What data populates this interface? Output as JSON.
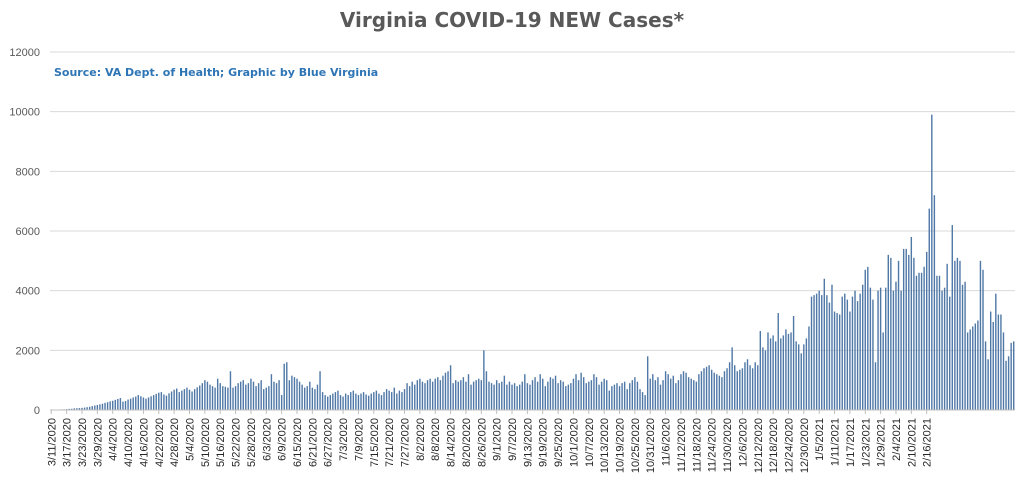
{
  "chart_data": {
    "type": "bar",
    "title": "Virginia COVID-19 NEW Cases*",
    "subtitle": "Source: VA Dept. of Health; Graphic by Blue Virginia",
    "xlabel": "",
    "ylabel": "",
    "ylim": [
      0,
      12000
    ],
    "yticks": [
      0,
      2000,
      4000,
      6000,
      8000,
      10000,
      12000
    ],
    "grid": true,
    "legend": "none",
    "bar_color": "#4f78a7",
    "start_date": "2020-03-11",
    "tick_labels": [
      "3/11/2020",
      "3/17/2020",
      "3/23/2020",
      "3/29/2020",
      "4/4/2020",
      "4/10/2020",
      "4/16/2020",
      "4/22/2020",
      "4/28/2020",
      "5/4/2020",
      "5/10/2020",
      "5/16/2020",
      "5/22/2020",
      "5/28/2020",
      "6/3/2020",
      "6/9/2020",
      "6/15/2020",
      "6/21/2020",
      "6/27/2020",
      "7/3/2020",
      "7/9/2020",
      "7/15/2020",
      "7/21/2020",
      "7/27/2020",
      "8/2/2020",
      "8/8/2020",
      "8/14/2020",
      "8/20/2020",
      "8/26/2020",
      "9/1/2020",
      "9/7/2020",
      "9/13/2020",
      "9/19/2020",
      "9/25/2020",
      "10/1/2020",
      "10/7/2020",
      "10/13/2020",
      "10/19/2020",
      "10/25/2020",
      "10/31/2020",
      "11/6/2020",
      "11/12/2020",
      "11/18/2020",
      "11/24/2020",
      "11/30/2020",
      "12/6/2020",
      "12/12/2020",
      "12/18/2020",
      "12/24/2020",
      "12/30/2020",
      "1/5/2021",
      "1/11/2021",
      "1/17/2021",
      "1/23/2021",
      "1/29/2021",
      "2/4/2021",
      "2/10/2021",
      "2/16/2021"
    ],
    "values": [
      9,
      17,
      11,
      15,
      20,
      22,
      30,
      38,
      42,
      55,
      60,
      65,
      72,
      80,
      95,
      110,
      130,
      150,
      170,
      190,
      210,
      240,
      260,
      290,
      310,
      340,
      370,
      400,
      280,
      300,
      350,
      380,
      420,
      450,
      500,
      460,
      420,
      380,
      420,
      460,
      500,
      540,
      580,
      600,
      520,
      480,
      560,
      620,
      680,
      720,
      600,
      650,
      700,
      750,
      680,
      620,
      700,
      760,
      820,
      900,
      1000,
      950,
      850,
      800,
      750,
      1050,
      900,
      800,
      780,
      750,
      1300,
      750,
      800,
      900,
      950,
      1000,
      850,
      900,
      1050,
      950,
      800,
      900,
      1000,
      700,
      750,
      800,
      1200,
      950,
      900,
      1000,
      500,
      1550,
      1600,
      1000,
      1150,
      1100,
      1050,
      950,
      850,
      750,
      800,
      950,
      750,
      700,
      850,
      1300,
      600,
      500,
      450,
      500,
      550,
      600,
      650,
      500,
      450,
      550,
      500,
      600,
      650,
      550,
      500,
      550,
      600,
      520,
      480,
      550,
      600,
      650,
      550,
      500,
      600,
      700,
      650,
      600,
      750,
      550,
      650,
      600,
      700,
      900,
      800,
      950,
      850,
      1000,
      1050,
      950,
      900,
      1000,
      1050,
      950,
      1050,
      1100,
      1000,
      1150,
      1250,
      1300,
      1500,
      900,
      1000,
      950,
      1000,
      1100,
      950,
      1200,
      850,
      950,
      1000,
      1050,
      1000,
      2000,
      1300,
      950,
      900,
      850,
      1000,
      900,
      950,
      1150,
      850,
      950,
      850,
      900,
      800,
      850,
      950,
      1200,
      900,
      850,
      1000,
      1100,
      950,
      1200,
      1050,
      800,
      950,
      1100,
      1050,
      1150,
      900,
      1000,
      950,
      800,
      850,
      900,
      1050,
      1200,
      1000,
      1250,
      1100,
      900,
      950,
      1000,
      1200,
      1100,
      850,
      950,
      1050,
      1000,
      650,
      800,
      850,
      900,
      800,
      900,
      950,
      700,
      900,
      1000,
      1100,
      950,
      700,
      600,
      500,
      1800,
      1050,
      1200,
      1000,
      1100,
      850,
      1000,
      1300,
      1200,
      1050,
      1150,
      900,
      1000,
      1200,
      1300,
      1250,
      1100,
      1050,
      1000,
      950,
      1200,
      1300,
      1400,
      1450,
      1500,
      1350,
      1250,
      1200,
      1150,
      1100,
      1300,
      1400,
      1600,
      2100,
      1500,
      1300,
      1350,
      1400,
      1600,
      1700,
      1500,
      1400,
      1600,
      1500,
      2650,
      2100,
      2000,
      2600,
      2400,
      2500,
      2300,
      3250,
      2400,
      2500,
      2700,
      2550,
      2600,
      3150,
      2300,
      2200,
      1900,
      2200,
      2400,
      2800,
      3800,
      3850,
      3900,
      4000,
      3850,
      4400,
      3850,
      3600,
      4200,
      3300,
      3250,
      3200,
      3800,
      3900,
      3700,
      3300,
      3800,
      4000,
      3650,
      3900,
      4200,
      4700,
      4800,
      4100,
      3700,
      1600,
      4000,
      4100,
      2600,
      4100,
      5200,
      5100,
      4000,
      4300,
      5000,
      4000,
      5400,
      5400,
      5200,
      5800,
      5100,
      4500,
      4600,
      4600,
      4800,
      5300,
      6750,
      9900,
      7200,
      4500,
      4500,
      4000,
      4100,
      4900,
      3800,
      6200,
      5000,
      5100,
      5000,
      4200,
      4300,
      2600,
      2700,
      2800,
      2900,
      3000,
      5000,
      4700,
      2300,
      1700,
      3300,
      2950,
      3900,
      3200,
      3200,
      2600,
      1650,
      1800,
      2250,
      2300
    ]
  }
}
